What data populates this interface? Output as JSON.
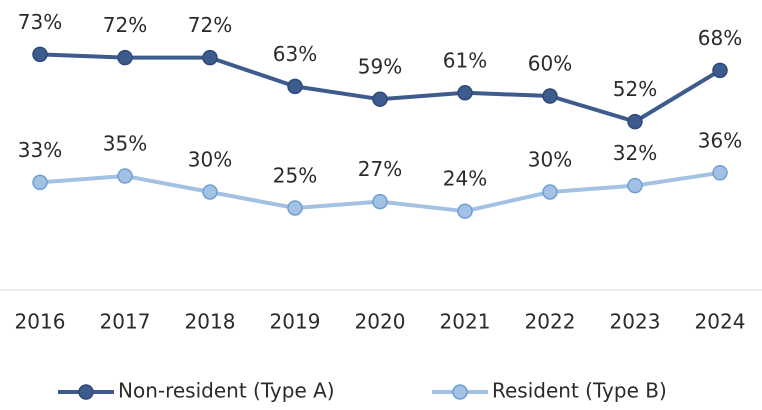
{
  "chart_data": {
    "type": "line",
    "categories": [
      "2016",
      "2017",
      "2018",
      "2019",
      "2020",
      "2021",
      "2022",
      "2023",
      "2024"
    ],
    "series": [
      {
        "name": "Non-resident (Type A)",
        "color": "#3d5b8c",
        "values": [
          73,
          72,
          72,
          63,
          59,
          61,
          60,
          52,
          68
        ],
        "value_labels": [
          "73%",
          "72%",
          "72%",
          "63%",
          "59%",
          "61%",
          "60%",
          "52%",
          "68%"
        ]
      },
      {
        "name": "Resident (Type B)",
        "color": "#a3c2e3",
        "values": [
          33,
          35,
          30,
          25,
          27,
          24,
          30,
          32,
          36
        ],
        "value_labels": [
          "33%",
          "35%",
          "30%",
          "25%",
          "27%",
          "24%",
          "30%",
          "32%",
          "36%"
        ]
      }
    ],
    "ylim": [
      0,
      80
    ],
    "legend": "bottom"
  }
}
